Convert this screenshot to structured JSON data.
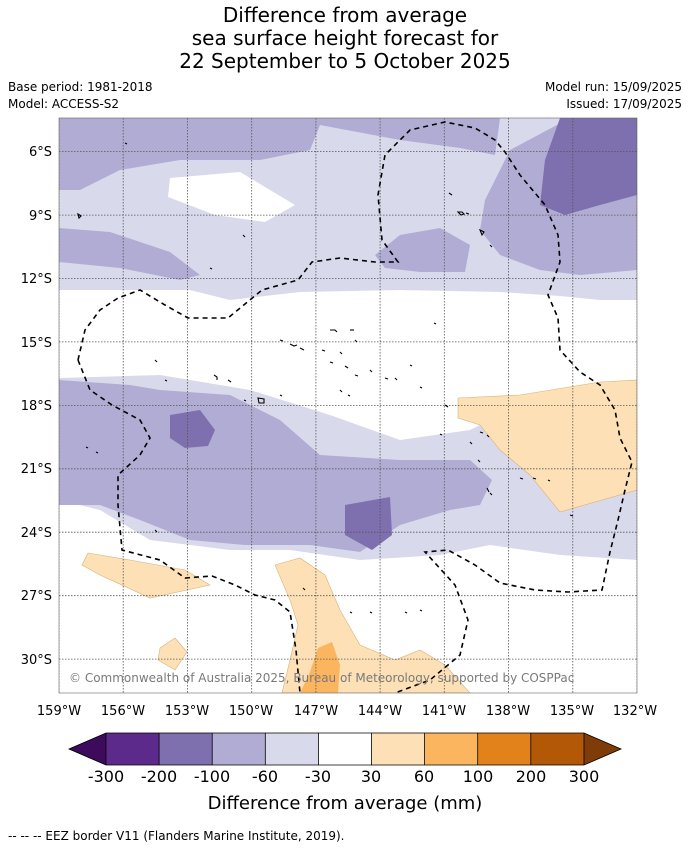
{
  "title": {
    "line1": "Difference from average",
    "line2": "sea surface height forecast for",
    "line3": "22 September to 5 October 2025"
  },
  "meta": {
    "base_period": "Base period: 1981-2018",
    "model": "Model: ACCESS-S2",
    "model_run": "Model run: 15/09/2025",
    "issued": "Issued: 17/09/2025"
  },
  "map": {
    "lat_labels": [
      "6°S",
      "9°S",
      "12°S",
      "15°S",
      "18°S",
      "21°S",
      "24°S",
      "27°S",
      "30°S"
    ],
    "lon_labels": [
      "159°W",
      "156°W",
      "153°W",
      "150°W",
      "147°W",
      "144°W",
      "141°W",
      "138°W",
      "135°W",
      "132°W"
    ],
    "copyright": "© Commonwealth of Australia 2025, Bureau of Meteorology, supported by COSPPac"
  },
  "colorbar": {
    "labels": [
      "-300",
      "-200",
      "-100",
      "-60",
      "-30",
      "30",
      "60",
      "100",
      "200",
      "300"
    ],
    "title": "Difference from average (mm)",
    "colors": {
      "under": "#3d0a5c",
      "bins": [
        "#5c2a8a",
        "#7e6fae",
        "#b1acd3",
        "#d9d9ec",
        "#ffffff",
        "#fde0b6",
        "#fbb55f",
        "#e2821a",
        "#b35807"
      ],
      "over": "#7f3b08"
    }
  },
  "footer": "--  --  -- EEZ border V11 (Flanders Marine Institute, 2019)."
}
